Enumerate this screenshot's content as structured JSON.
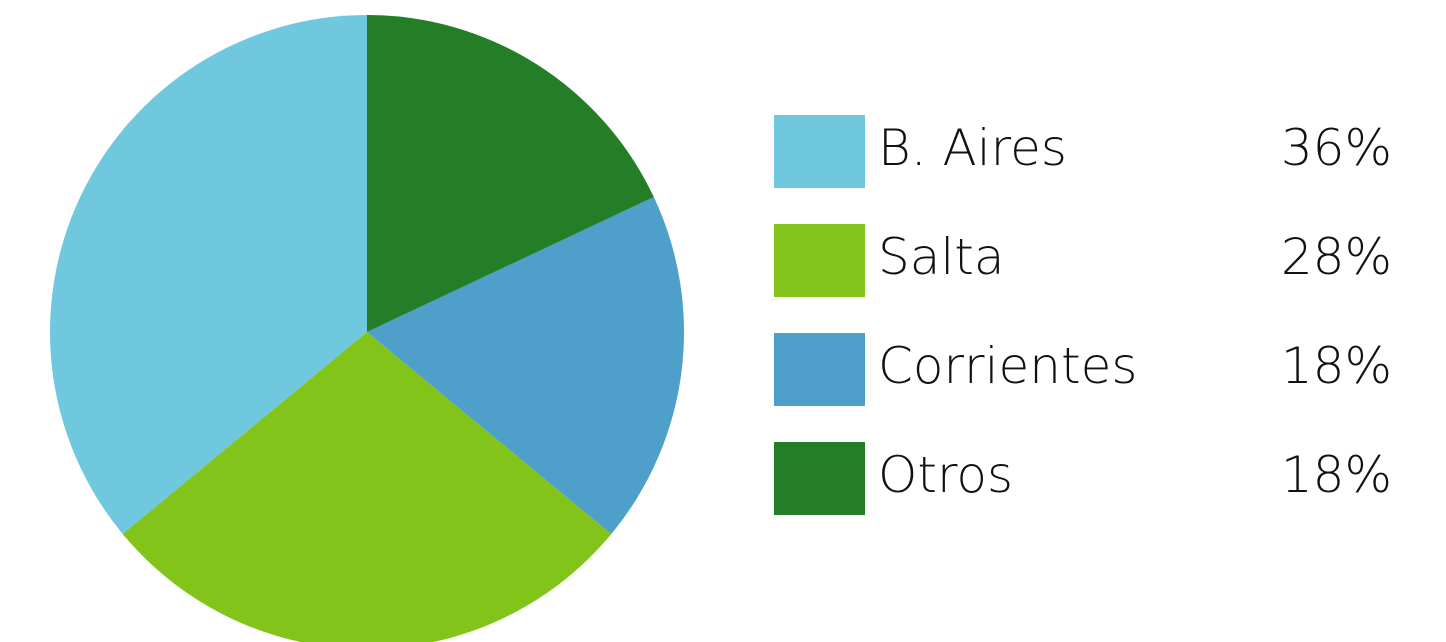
{
  "chart_data": {
    "type": "pie",
    "categories": [
      "B. Aires",
      "Salta",
      "Corrientes",
      "Otros"
    ],
    "values": [
      36,
      28,
      18,
      18
    ],
    "value_labels": [
      "36%",
      "28%",
      "18%",
      "18%"
    ],
    "colors": [
      "#6fc8de",
      "#82c41a",
      "#4e9fca",
      "#247e27"
    ]
  }
}
